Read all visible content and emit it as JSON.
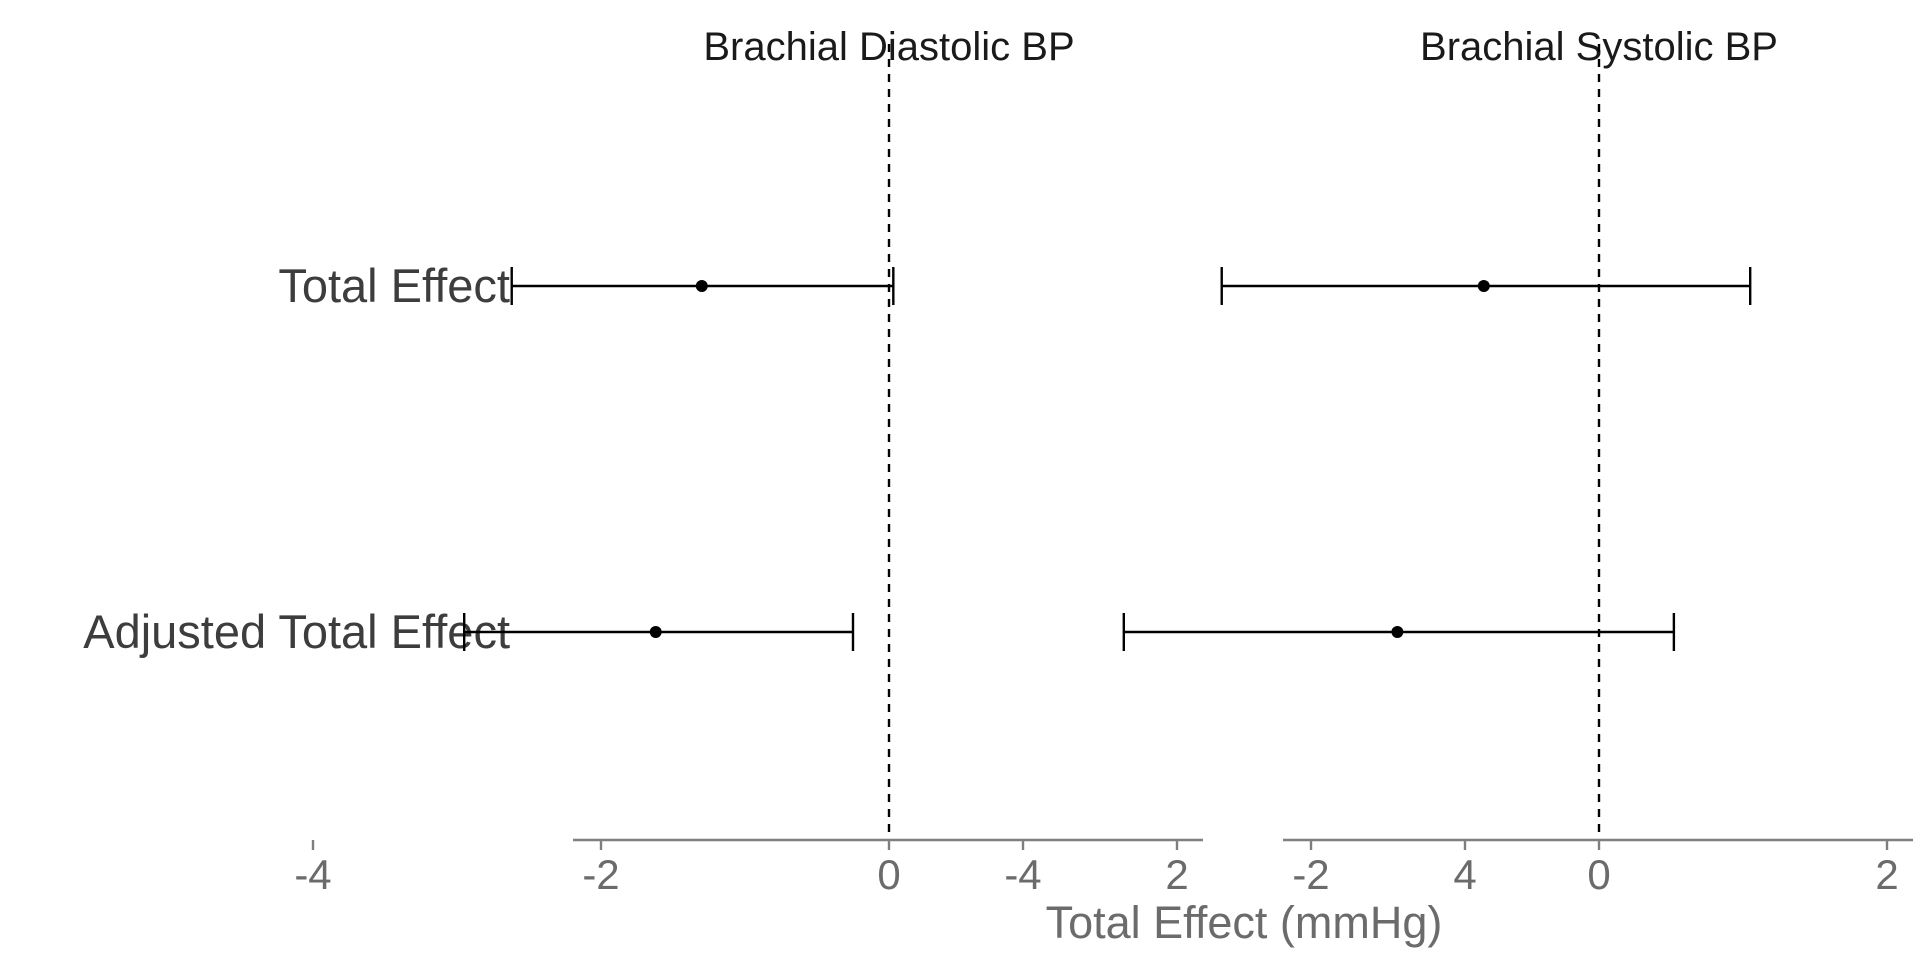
{
  "chart_data": {
    "type": "forest",
    "xlabel": "Total Effect (mmHg)",
    "xlim": [
      -4.2,
      4.2
    ],
    "xticks": [
      -4,
      -2,
      0,
      2,
      4
    ],
    "xtick_labels": [
      "-4",
      "-2",
      "0",
      "2",
      "4"
    ],
    "reference_line": 0,
    "rows": [
      "Total Effect",
      "Adjusted Total Effect"
    ],
    "panels": [
      {
        "title": "Brachial Diastolic BP",
        "estimates": [
          {
            "row": "Total Effect",
            "estimate": -1.3,
            "lower": -2.62,
            "upper": 0.03
          },
          {
            "row": "Adjusted Total Effect",
            "estimate": -1.62,
            "lower": -2.95,
            "upper": -0.25
          }
        ]
      },
      {
        "title": "Brachial Systolic BP",
        "estimates": [
          {
            "row": "Total Effect",
            "estimate": -0.8,
            "lower": -2.62,
            "upper": 1.05
          },
          {
            "row": "Adjusted Total Effect",
            "estimate": -1.4,
            "lower": -3.3,
            "upper": 0.52
          }
        ]
      }
    ],
    "colors": {
      "marks": "#000000",
      "axis": "#7f7f7f",
      "tick_text": "#6b6b6b",
      "row_text": "#3d3d3d"
    }
  }
}
